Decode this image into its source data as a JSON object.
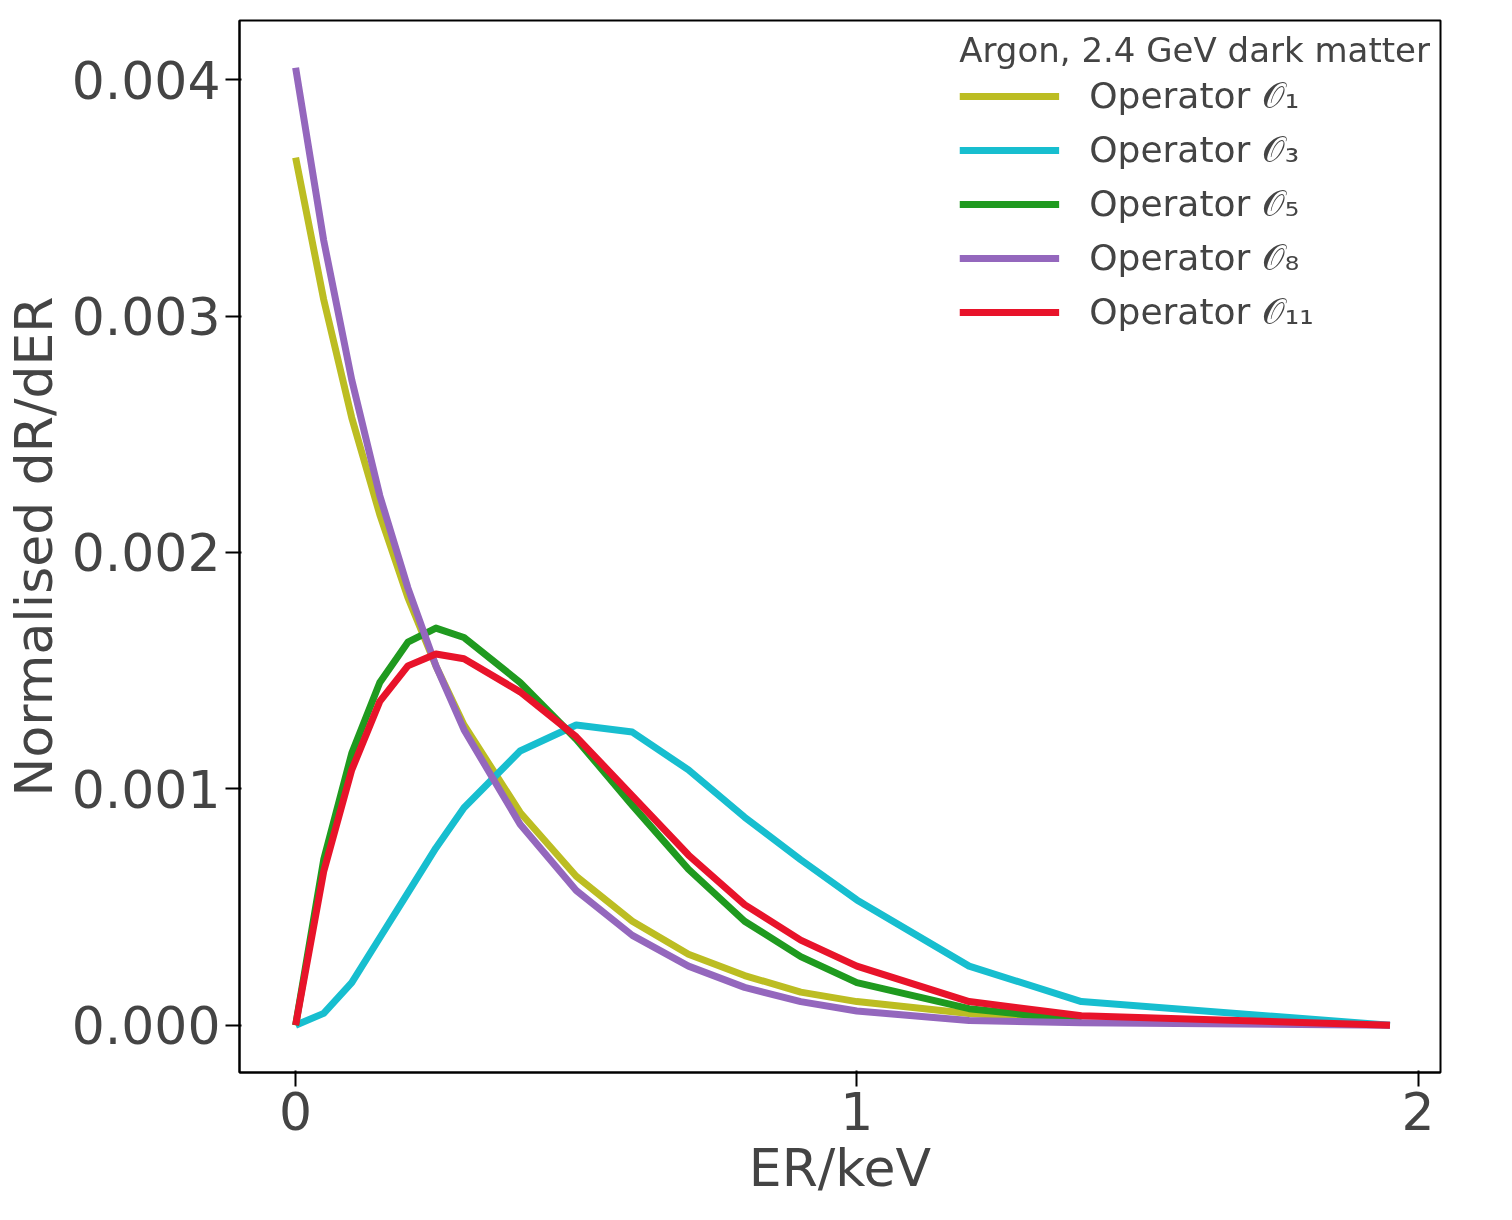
{
  "chart_data": {
    "type": "line",
    "xlabel": "ER/keV",
    "ylabel": "Normalised dR/dER",
    "legend_title": "Argon, 2.4 GeV dark matter",
    "legend": "top right",
    "grid": false,
    "x": [
      0,
      0.05,
      0.1,
      0.15,
      0.2,
      0.25,
      0.3,
      0.4,
      0.5,
      0.6,
      0.7,
      0.8,
      0.9,
      1.0,
      1.2,
      1.4,
      1.95
    ],
    "xlim": [
      -0.1,
      2.04
    ],
    "ylim": [
      -0.0002,
      0.00425
    ],
    "xticks": [
      0,
      1,
      2
    ],
    "yticks": [
      {
        "value": 0,
        "label": "0.000"
      },
      {
        "value": 0.001,
        "label": "0.001"
      },
      {
        "value": 0.002,
        "label": "0.002"
      },
      {
        "value": 0.003,
        "label": "0.003"
      },
      {
        "value": 0.004,
        "label": "0.004"
      }
    ],
    "series": [
      {
        "name": "Operator 𝒪₁",
        "color": "#bcbd22",
        "x": [
          0,
          0.05,
          0.1,
          0.15,
          0.2,
          0.25,
          0.3,
          0.4,
          0.5,
          0.6,
          0.7,
          0.8,
          0.9,
          1.0,
          1.2,
          1.4
        ],
        "values": [
          0.00367,
          0.00307,
          0.00257,
          0.00216,
          0.00181,
          0.00152,
          0.00127,
          0.0009,
          0.00063,
          0.00044,
          0.0003,
          0.00021,
          0.00014,
          0.0001,
          5e-05,
          2e-05
        ]
      },
      {
        "name": "Operator 𝒪₃",
        "color": "#17becf",
        "values": [
          0,
          5e-05,
          0.00018,
          0.00037,
          0.00056,
          0.00075,
          0.00092,
          0.00116,
          0.00127,
          0.00124,
          0.00108,
          0.00088,
          0.0007,
          0.00053,
          0.00025,
          0.0001,
          0
        ]
      },
      {
        "name": "Operator 𝒪₅",
        "color": "#1f9a1f",
        "x": [
          0,
          0.05,
          0.1,
          0.15,
          0.2,
          0.25,
          0.3,
          0.4,
          0.5,
          0.6,
          0.7,
          0.8,
          0.9,
          1.0,
          1.2,
          1.4
        ],
        "values": [
          0,
          0.0007,
          0.00115,
          0.00145,
          0.00162,
          0.00168,
          0.00164,
          0.00145,
          0.00121,
          0.00093,
          0.00066,
          0.00044,
          0.00029,
          0.00018,
          7e-05,
          2e-05
        ]
      },
      {
        "name": "Operator 𝒪₈",
        "color": "#9467bd",
        "values": [
          0.00405,
          0.00332,
          0.00273,
          0.00224,
          0.00185,
          0.00152,
          0.00125,
          0.00085,
          0.00057,
          0.00038,
          0.00025,
          0.00016,
          0.0001,
          6e-05,
          2e-05,
          1e-05,
          0
        ]
      },
      {
        "name": "Operator 𝒪₁₁",
        "color": "#e8132a",
        "values": [
          0,
          0.00065,
          0.00108,
          0.00137,
          0.00152,
          0.00157,
          0.00155,
          0.00141,
          0.00122,
          0.00097,
          0.00072,
          0.00051,
          0.00036,
          0.00025,
          0.0001,
          4e-05,
          0
        ]
      }
    ]
  }
}
